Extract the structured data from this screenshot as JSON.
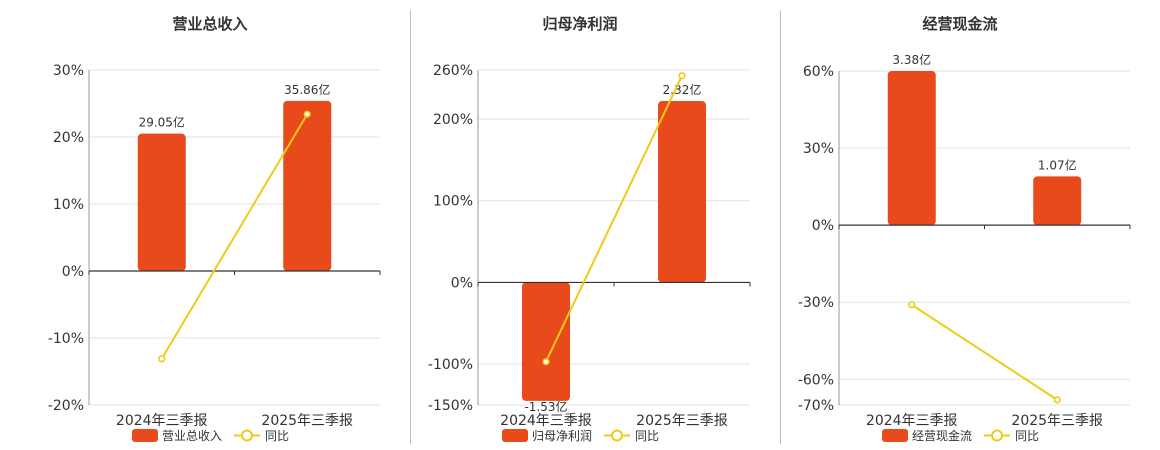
{
  "colors": {
    "bar": "#E84A1C",
    "line": "#EFCB17",
    "grid": "#E3E3E3",
    "axis": "#333333"
  },
  "chart_data": [
    {
      "type": "bar",
      "title": "营业总收入",
      "categories": [
        "2024年三季报",
        "2025年三季报"
      ],
      "series": [
        {
          "name": "营业总收入",
          "kind": "bar",
          "values": [
            20.5,
            25.4
          ],
          "labels": [
            "29.05亿",
            "35.86亿"
          ]
        },
        {
          "name": "同比",
          "kind": "line",
          "values": [
            -13.1,
            23.4
          ]
        }
      ],
      "ylim": [
        -20,
        30
      ],
      "yticks": [
        30,
        20,
        10,
        0,
        -10,
        -20
      ],
      "ytick_labels": [
        "30%",
        "20%",
        "10%",
        "0%",
        "-10%",
        "-20%"
      ],
      "grid": true,
      "legend": "bottom"
    },
    {
      "type": "bar",
      "title": "归母净利润",
      "categories": [
        "2024年三季报",
        "2025年三季报"
      ],
      "series": [
        {
          "name": "归母净利润",
          "kind": "bar",
          "values": [
            -145,
            222
          ],
          "labels": [
            "-1.53亿",
            "2.32亿"
          ]
        },
        {
          "name": "同比",
          "kind": "line",
          "values": [
            -97,
            253
          ]
        }
      ],
      "ylim": [
        -150,
        260
      ],
      "yticks": [
        260,
        200,
        100,
        0,
        -100,
        -150
      ],
      "ytick_labels": [
        "260%",
        "200%",
        "100%",
        "0%",
        "-100%",
        "-150%"
      ],
      "grid": true,
      "legend": "bottom"
    },
    {
      "type": "bar",
      "title": "经营现金流",
      "categories": [
        "2024年三季报",
        "2025年三季报"
      ],
      "series": [
        {
          "name": "经营现金流",
          "kind": "bar",
          "values": [
            60,
            19
          ],
          "labels": [
            "3.38亿",
            "1.07亿"
          ]
        },
        {
          "name": "同比",
          "kind": "line",
          "values": [
            -31,
            -68
          ]
        }
      ],
      "ylim": [
        -70,
        60
      ],
      "yticks": [
        60,
        30,
        0,
        -30,
        -60,
        -70
      ],
      "ytick_labels": [
        "60%",
        "30%",
        "0%",
        "-30%",
        "-60%",
        "-70%"
      ],
      "grid": true,
      "legend": "bottom"
    }
  ]
}
